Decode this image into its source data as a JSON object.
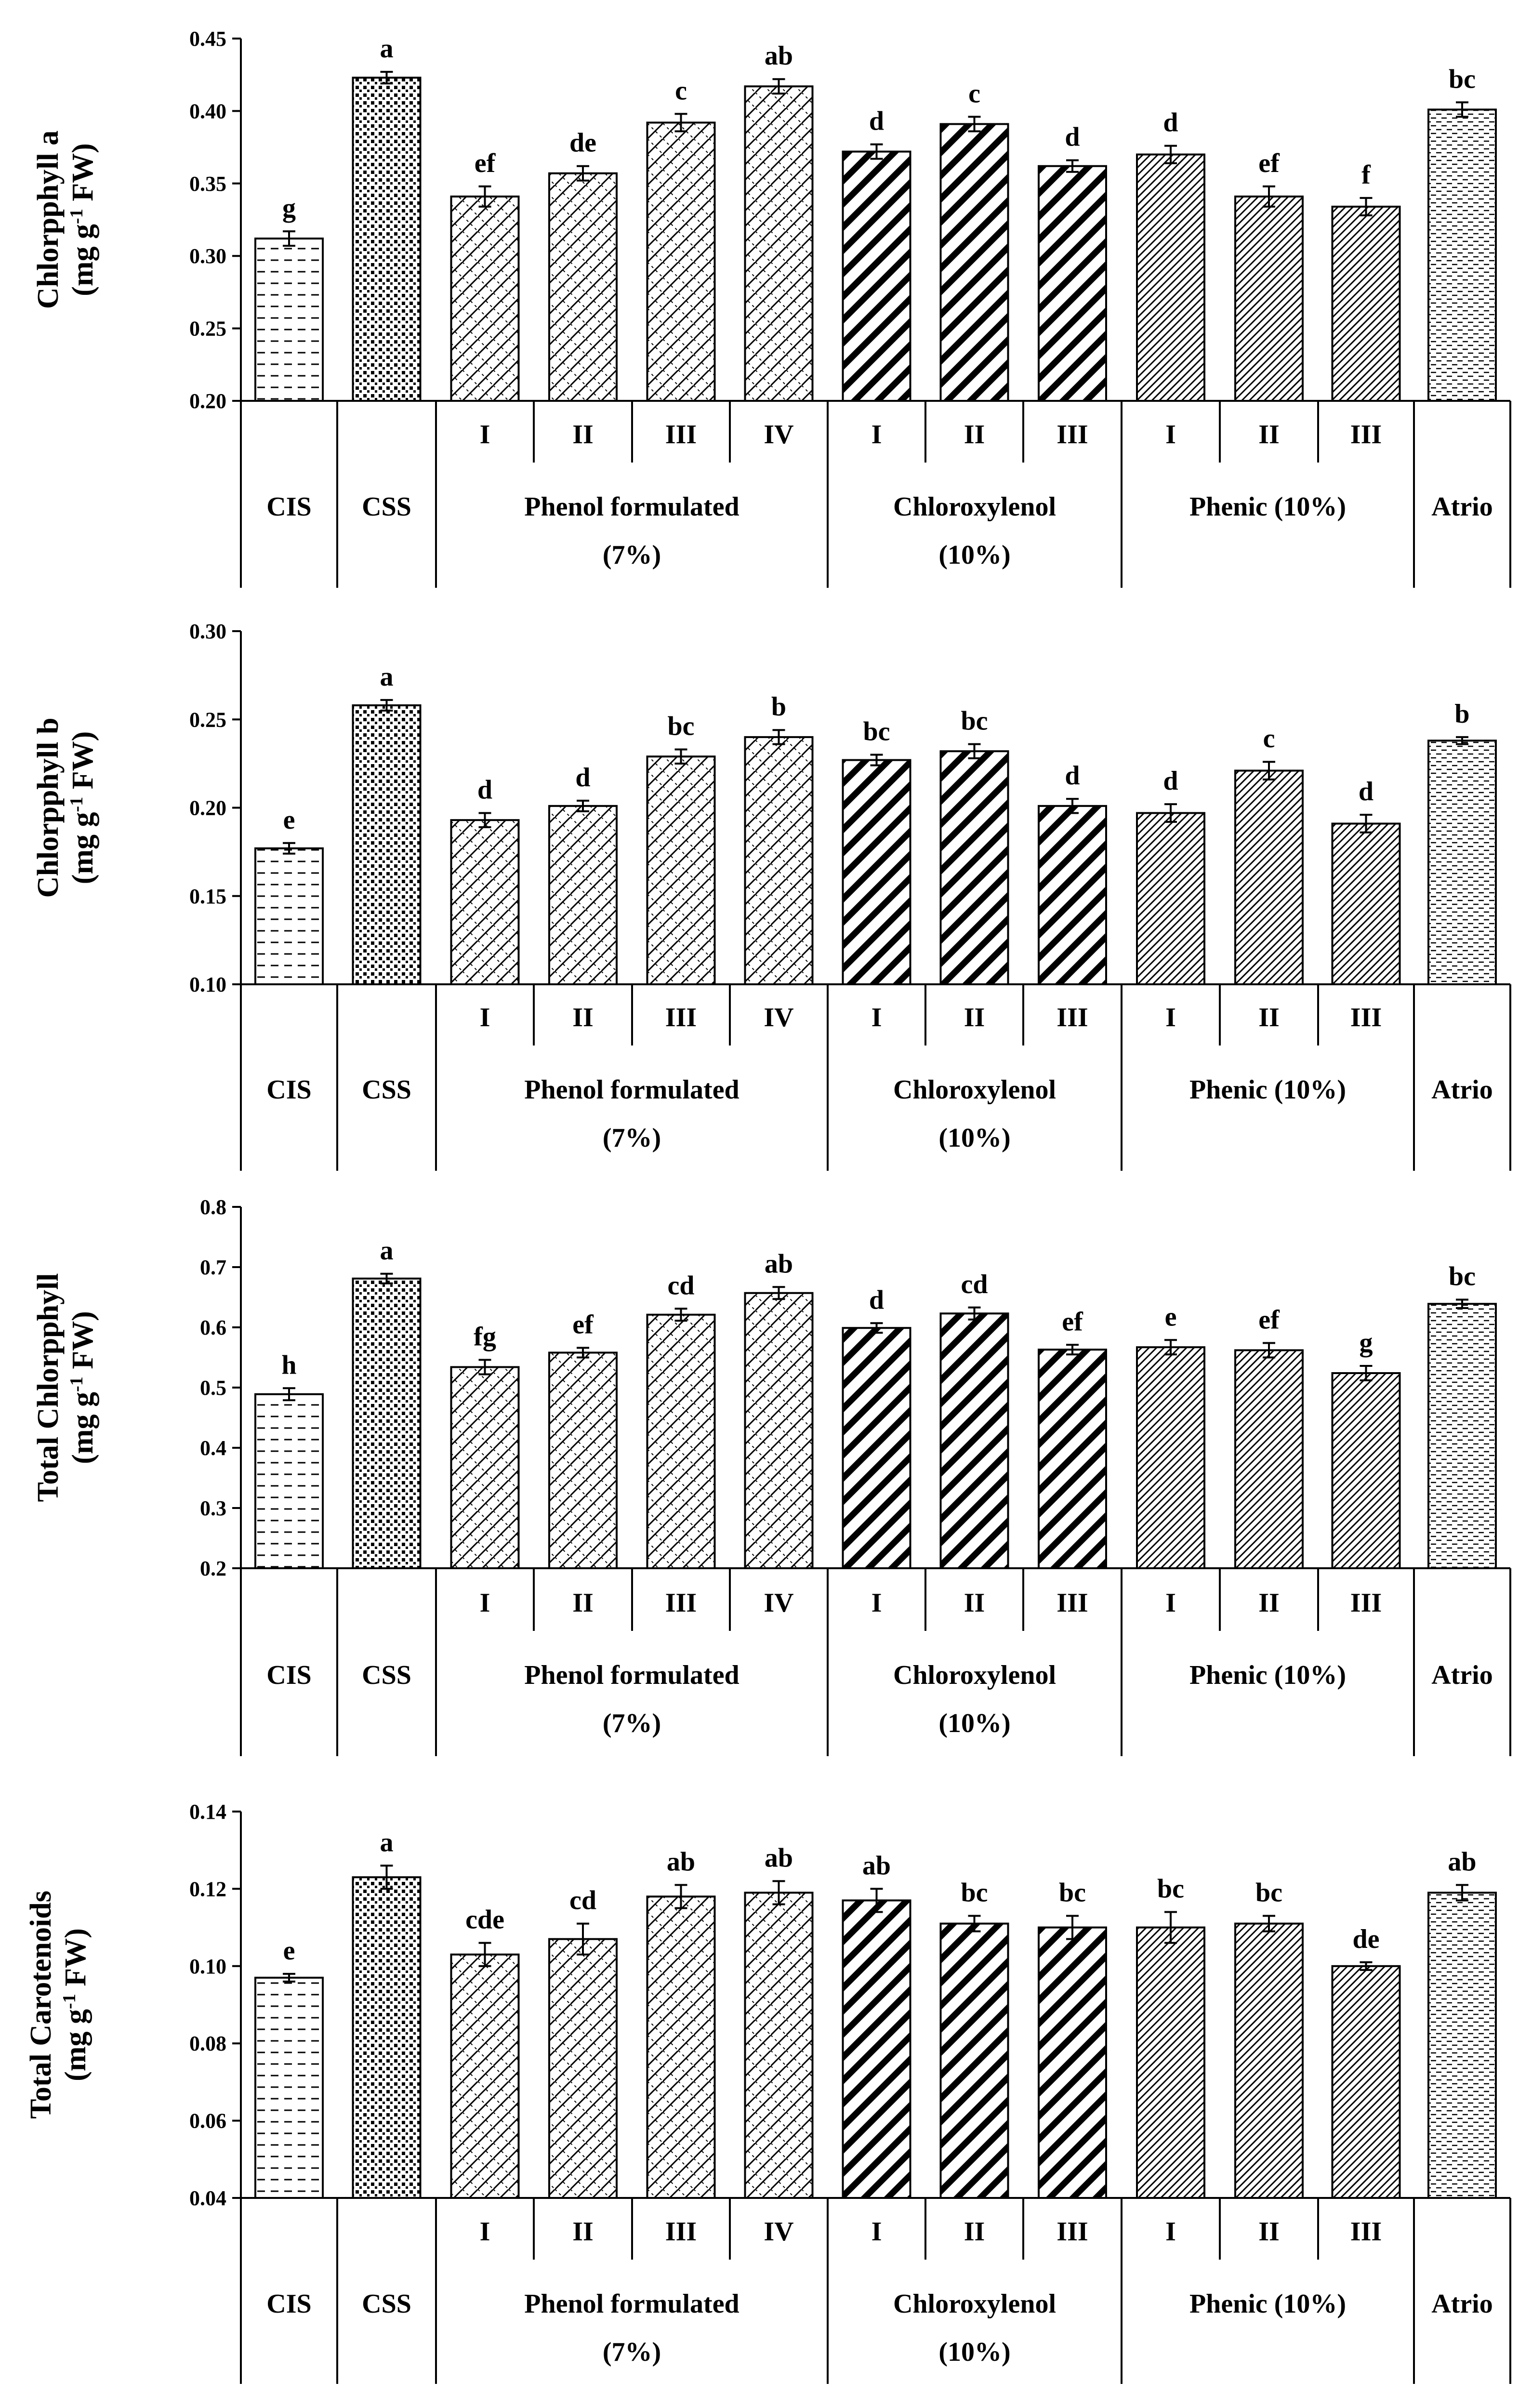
{
  "chart_data": [
    {
      "type": "bar",
      "ylabel_line1": "Chlorpphyll a",
      "ylabel_line2": "(mg g",
      "ylabel_sup": "-1",
      "ylabel_line2_end": " FW)",
      "ylim": [
        0.2,
        0.45
      ],
      "yticks": [
        "0.20",
        "0.25",
        "0.30",
        "0.35",
        "0.40",
        "0.45"
      ],
      "categories": [
        "CIS",
        "CSS",
        "Phenol formulated (7%) I",
        "Phenol formulated (7%) II",
        "Phenol formulated (7%) III",
        "Phenol formulated (7%) IV",
        "Chloroxylenol (10%) I",
        "Chloroxylenol (10%) II",
        "Chloroxylenol (10%) III",
        "Phenic (10%) I",
        "Phenic (10%) II",
        "Phenic (10%) III",
        "Atrio"
      ],
      "values": [
        0.312,
        0.423,
        0.341,
        0.357,
        0.392,
        0.417,
        0.372,
        0.391,
        0.362,
        0.37,
        0.341,
        0.334,
        0.401
      ],
      "errors": [
        0.005,
        0.004,
        0.007,
        0.005,
        0.006,
        0.005,
        0.005,
        0.005,
        0.004,
        0.006,
        0.007,
        0.006,
        0.005
      ],
      "letters": [
        "g",
        "a",
        "ef",
        "de",
        "c",
        "ab",
        "d",
        "c",
        "d",
        "d",
        "ef",
        "f",
        "bc"
      ]
    },
    {
      "type": "bar",
      "ylabel_line1": "Chlorpphyll b",
      "ylabel_line2": "(mg g",
      "ylabel_sup": "-1",
      "ylabel_line2_end": " FW)",
      "ylim": [
        0.1,
        0.3
      ],
      "yticks": [
        "0.10",
        "0.15",
        "0.20",
        "0.25",
        "0.30"
      ],
      "categories": [
        "CIS",
        "CSS",
        "Phenol formulated (7%) I",
        "Phenol formulated (7%) II",
        "Phenol formulated (7%) III",
        "Phenol formulated (7%) IV",
        "Chloroxylenol (10%) I",
        "Chloroxylenol (10%) II",
        "Chloroxylenol (10%) III",
        "Phenic (10%) I",
        "Phenic (10%) II",
        "Phenic (10%) III",
        "Atrio"
      ],
      "values": [
        0.177,
        0.258,
        0.193,
        0.201,
        0.229,
        0.24,
        0.227,
        0.232,
        0.201,
        0.197,
        0.221,
        0.191,
        0.238
      ],
      "errors": [
        0.003,
        0.003,
        0.004,
        0.003,
        0.004,
        0.004,
        0.003,
        0.004,
        0.004,
        0.005,
        0.005,
        0.005,
        0.002
      ],
      "letters": [
        "e",
        "a",
        "d",
        "d",
        "bc",
        "b",
        "bc",
        "bc",
        "d",
        "d",
        "c",
        "d",
        "b"
      ]
    },
    {
      "type": "bar",
      "ylabel_line1": "Total Chlorpphyll",
      "ylabel_line2": "(mg g",
      "ylabel_sup": "-1",
      "ylabel_line2_end": " FW)",
      "ylim": [
        0.2,
        0.8
      ],
      "yticks": [
        "0.2",
        "0.3",
        "0.4",
        "0.5",
        "0.6",
        "0.7",
        "0.8"
      ],
      "categories": [
        "CIS",
        "CSS",
        "Phenol formulated (7%) I",
        "Phenol formulated (7%) II",
        "Phenol formulated (7%) III",
        "Phenol formulated (7%) IV",
        "Chloroxylenol (10%) I",
        "Chloroxylenol (10%) II",
        "Chloroxylenol (10%) III",
        "Phenic (10%) I",
        "Phenic (10%) II",
        "Phenic (10%) III",
        "Atrio"
      ],
      "values": [
        0.489,
        0.681,
        0.534,
        0.558,
        0.621,
        0.657,
        0.599,
        0.623,
        0.563,
        0.567,
        0.562,
        0.524,
        0.639
      ],
      "errors": [
        0.01,
        0.008,
        0.012,
        0.008,
        0.01,
        0.01,
        0.008,
        0.01,
        0.008,
        0.012,
        0.012,
        0.012,
        0.007
      ],
      "letters": [
        "h",
        "a",
        "fg",
        "ef",
        "cd",
        "ab",
        "d",
        "cd",
        "ef",
        "e",
        "ef",
        "g",
        "bc"
      ]
    },
    {
      "type": "bar",
      "ylabel_line1": "Total Carotenoids",
      "ylabel_line2": "(mg g",
      "ylabel_sup": "-1",
      "ylabel_line2_end": " FW)",
      "ylim": [
        0.04,
        0.14
      ],
      "yticks": [
        "0.04",
        "0.06",
        "0.08",
        "0.10",
        "0.12",
        "0.14"
      ],
      "categories": [
        "CIS",
        "CSS",
        "Phenol formulated (7%) I",
        "Phenol formulated (7%) II",
        "Phenol formulated (7%) III",
        "Phenol formulated (7%) IV",
        "Chloroxylenol (10%) I",
        "Chloroxylenol (10%) II",
        "Chloroxylenol (10%) III",
        "Phenic (10%) I",
        "Phenic (10%) II",
        "Phenic (10%) III",
        "Atrio"
      ],
      "values": [
        0.097,
        0.123,
        0.103,
        0.107,
        0.118,
        0.119,
        0.117,
        0.111,
        0.11,
        0.11,
        0.111,
        0.1,
        0.119
      ],
      "errors": [
        0.001,
        0.003,
        0.003,
        0.004,
        0.003,
        0.003,
        0.003,
        0.002,
        0.003,
        0.004,
        0.002,
        0.001,
        0.002
      ],
      "letters": [
        "e",
        "a",
        "cde",
        "cd",
        "ab",
        "ab",
        "ab",
        "bc",
        "bc",
        "bc",
        "bc",
        "de",
        "ab"
      ]
    }
  ],
  "axis_labels": {
    "sub": [
      "I",
      "II",
      "III",
      "IV",
      "I",
      "II",
      "III",
      "I",
      "II",
      "III"
    ],
    "groups": {
      "cis": "CIS",
      "css": "CSS",
      "phenol_line1": "Phenol formulated",
      "phenol_line2": "(7%)",
      "chloro_line1": "Chloroxylenol",
      "chloro_line2": "(10%)",
      "phenic": "Phenic (10%)",
      "atrio": "Atrio"
    }
  },
  "colors": {
    "ink": "#000000",
    "background": "#ffffff"
  }
}
